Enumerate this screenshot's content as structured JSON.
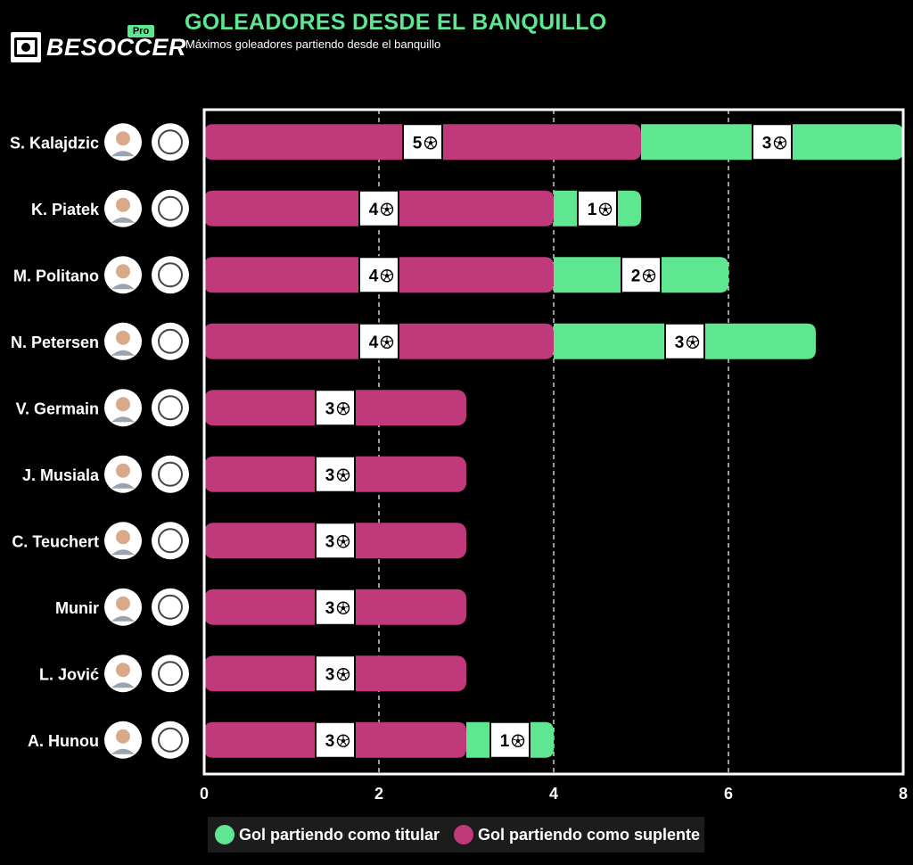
{
  "brand": {
    "name": "BESOCCER",
    "tag": "Pro"
  },
  "header": {
    "title": "GOLEADORES DESDE EL BANQUILLO",
    "subtitle": "Máximos goleadores partiendo desde el banquillo"
  },
  "colors": {
    "starter": "#5ee690",
    "substitute": "#c0397a",
    "title": "#5ee690",
    "background": "#000000"
  },
  "legend": {
    "starter_label": "Gol partiendo como titular",
    "substitute_label": "Gol partiendo como suplente"
  },
  "chart_data": {
    "type": "bar",
    "orientation": "horizontal",
    "stacked": true,
    "title": "GOLEADORES DESDE EL BANQUILLO",
    "subtitle": "Máximos goleadores partiendo desde el banquillo",
    "categories": [
      "S. Kalajdzic",
      "K. Piatek",
      "M. Politano",
      "N. Petersen",
      "V. Germain",
      "J. Musiala",
      "C. Teuchert",
      "Munir",
      "L. Jović",
      "A. Hunou"
    ],
    "series": [
      {
        "name": "Gol partiendo como suplente",
        "color": "#c0397a",
        "values": [
          5,
          4,
          4,
          4,
          3,
          3,
          3,
          3,
          3,
          3
        ]
      },
      {
        "name": "Gol partiendo como titular",
        "color": "#5ee690",
        "values": [
          3,
          1,
          2,
          3,
          0,
          0,
          0,
          0,
          0,
          1
        ]
      }
    ],
    "xlim": [
      0,
      8
    ],
    "xticks": [
      0,
      2,
      4,
      6,
      8
    ],
    "grid": "vertical dashed",
    "legend_position": "bottom",
    "data_label_icon": "soccer-ball-icon",
    "player_photo_icon": "player-photo-icon",
    "club_badge_icon": "club-badge-icon"
  }
}
